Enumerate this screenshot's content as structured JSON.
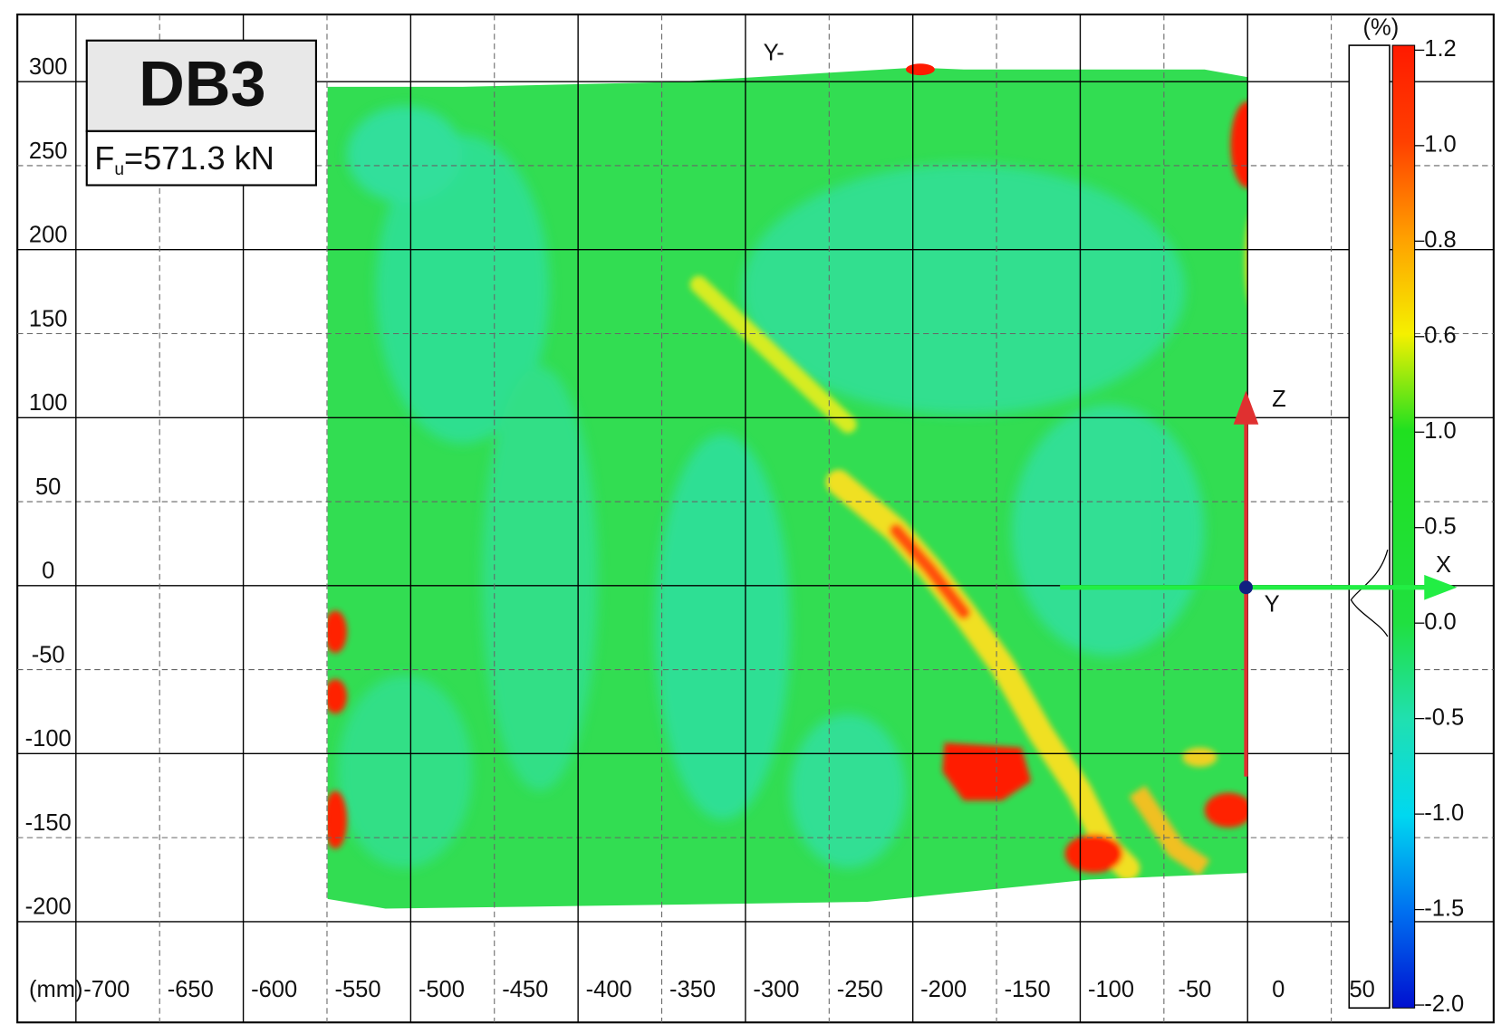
{
  "chart_data": {
    "type": "heatmap",
    "title": "DB3",
    "force_symbol": "F",
    "force_subscript": "u",
    "force_value": "=571.3 kN",
    "x_unit": "(mm)",
    "top_label": "Y-",
    "axis_labels": {
      "x": "X",
      "y": "Y",
      "z": "Z"
    },
    "xlim": [
      -735,
      147
    ],
    "ylim": [
      -260,
      340
    ],
    "xticks": [
      -700,
      -650,
      -600,
      -550,
      -500,
      -450,
      -400,
      -350,
      -300,
      -250,
      -200,
      -150,
      -100,
      -50,
      0,
      50
    ],
    "yticks": [
      300,
      250,
      200,
      150,
      100,
      50,
      0,
      -50,
      -100,
      -150,
      -200
    ],
    "grid": true,
    "colorbar": {
      "unit": "(%)",
      "ticks": [
        1.2,
        {
          "value": 1.0,
          "label": "1.0"
        },
        0.8,
        0.6,
        {
          "value": 1.0,
          "label": "1.0"
        },
        0.5,
        {
          "value": 0.0,
          "label": "0.0"
        },
        -0.5,
        {
          "value": -1.0,
          "label": "-1.0"
        },
        -1.5,
        {
          "value": -2.0,
          "label": "-2.0"
        }
      ]
    }
  }
}
